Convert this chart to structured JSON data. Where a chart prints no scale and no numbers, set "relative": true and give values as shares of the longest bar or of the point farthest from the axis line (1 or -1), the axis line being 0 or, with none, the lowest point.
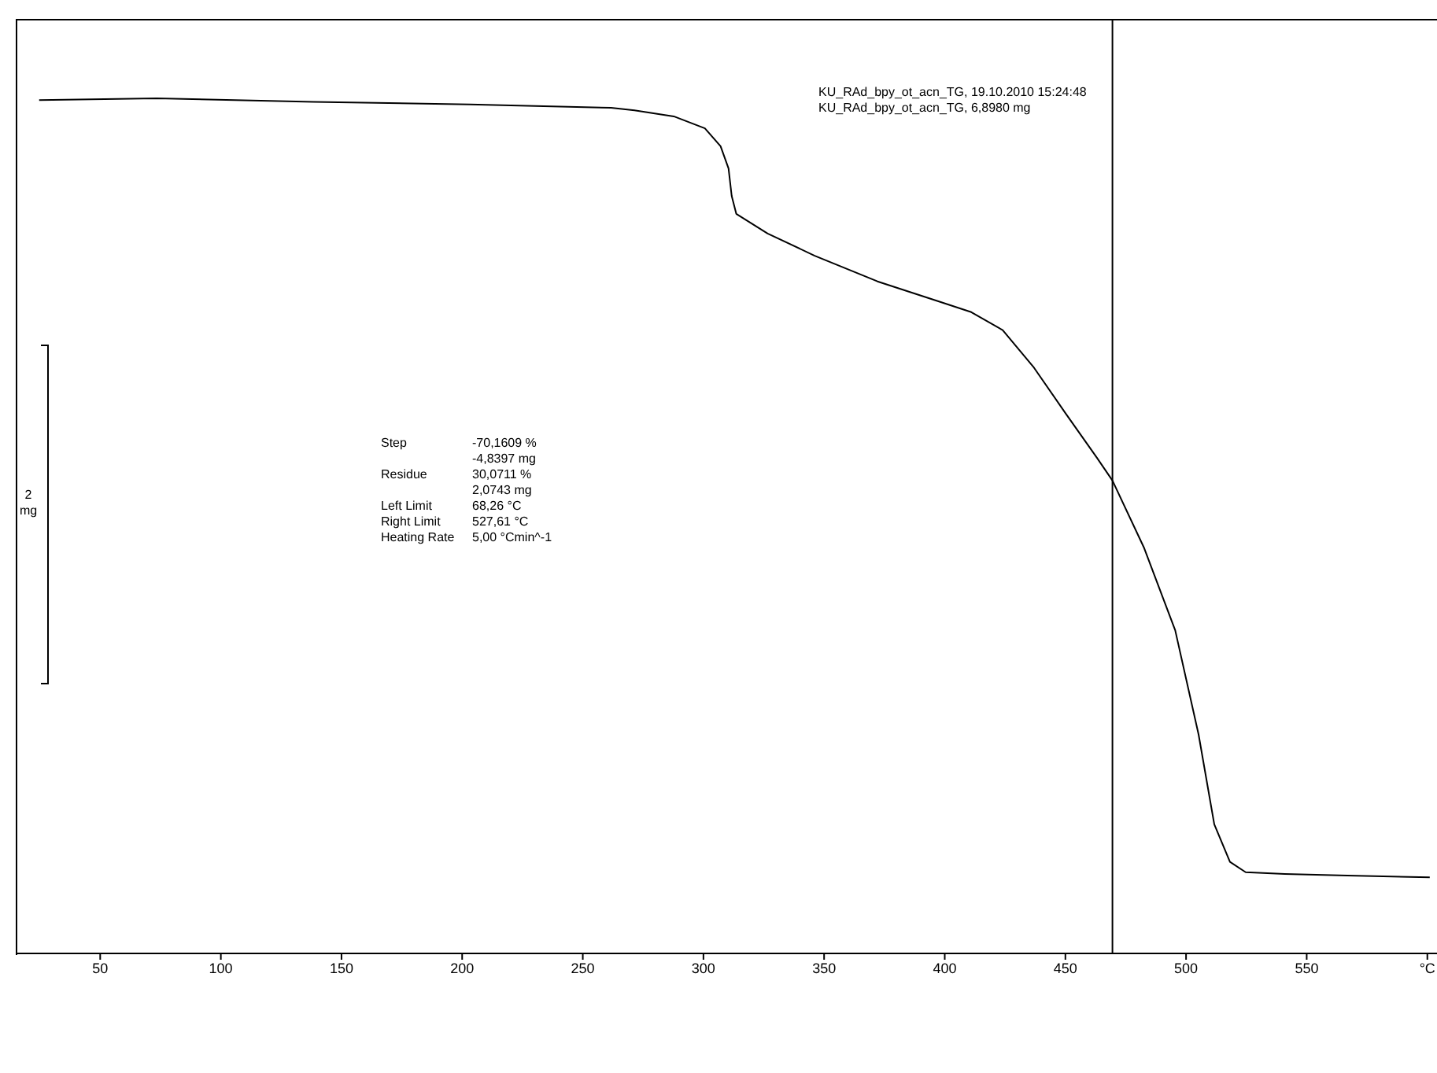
{
  "chart_data": {
    "type": "line",
    "relative": true,
    "x": [
      24.7,
      73.4,
      138.3,
      203.2,
      261.7,
      271.4,
      287.7,
      300.6,
      307.1,
      310.4,
      311.7,
      313.6,
      326.6,
      346.1,
      372.1,
      398.1,
      411.0,
      424.0,
      437.0,
      450.0,
      463.0,
      469.5,
      482.5,
      495.5,
      505.2,
      511.7,
      518.2,
      524.7,
      540.9,
      566.9,
      601.0
    ],
    "series": [
      {
        "color": "#000000",
        "values": [
          0.998,
          1.0,
          0.996,
          0.993,
          0.989,
          0.986,
          0.979,
          0.965,
          0.944,
          0.918,
          0.886,
          0.865,
          0.842,
          0.816,
          0.786,
          0.762,
          0.75,
          0.729,
          0.685,
          0.632,
          0.58,
          0.553,
          0.475,
          0.378,
          0.256,
          0.151,
          0.107,
          0.095,
          0.093,
          0.091,
          0.089
        ]
      }
    ],
    "xlim": [
      15,
      604
    ],
    "xticks": [
      50,
      100,
      150,
      200,
      250,
      300,
      350,
      400,
      450,
      500,
      550,
      {
        "value": 600,
        "label": "°C"
      }
    ],
    "ref_lines": [
      {
        "axis": "x",
        "value": 469.5,
        "color": "#000000"
      }
    ],
    "annotations": [
      "KU_RAd_bpy_ot_acn_TG, 19.10.2010 15:24:48",
      "KU_RAd_bpy_ot_acn_TG, 6,8980 mg",
      "Step\t-70,1609 %",
      "\t-4,8397 mg",
      "Residue\t30,0711 %",
      "\t2,0743 mg",
      "Left Limit\t68,26 °C",
      "Right Limit\t527,61 °C",
      "Heating Rate\t5,00 °Cmin^-1",
      "2 mg"
    ],
    "grid": false
  }
}
